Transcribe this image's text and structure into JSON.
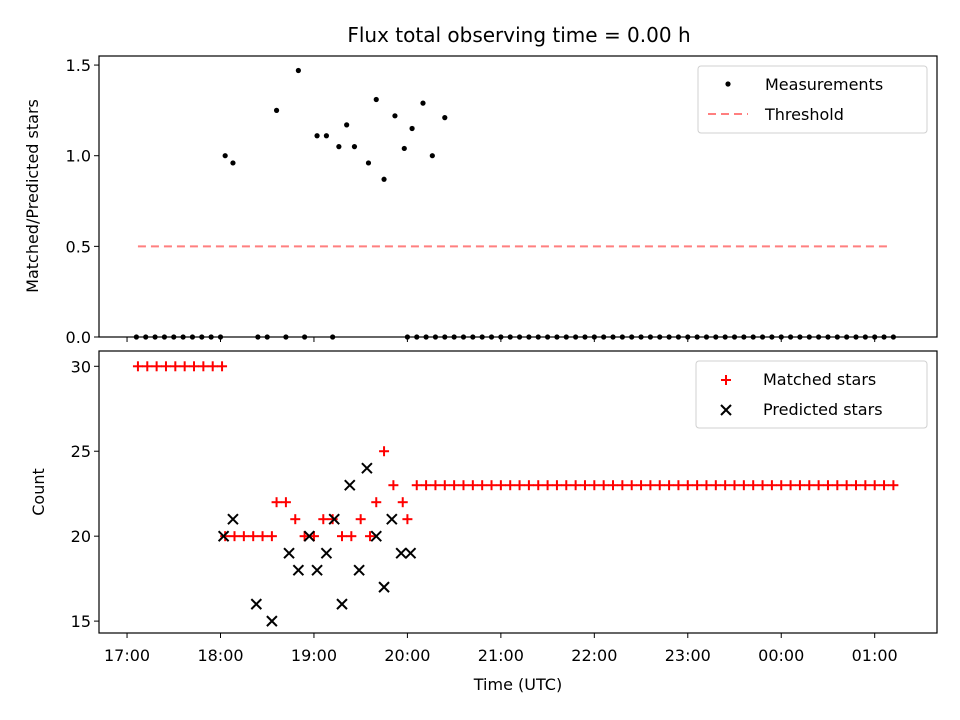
{
  "title": "Flux total observing time = 0.00 h",
  "colors": {
    "measurement": "#000000",
    "threshold": "#ff7f7f",
    "matched": "#ff0000",
    "predicted": "#000000"
  },
  "chart_data": [
    {
      "type": "scatter",
      "panel": "top",
      "ylabel": "Matched/Predicted stars",
      "ylim": [
        0,
        1.55
      ],
      "xlim": [
        "16:42",
        "01:40"
      ],
      "yticks": [
        "0.0",
        "0.5",
        "1.0",
        "1.5"
      ],
      "yticks_values": [
        0,
        0.5,
        1.0,
        1.5
      ],
      "legend": {
        "placement": "top-right",
        "entries": [
          "Measurements",
          "Threshold"
        ]
      },
      "series": [
        {
          "name": "Measurements",
          "marker": "dot",
          "x": [
            "17:06",
            "17:12",
            "17:18",
            "17:24",
            "17:30",
            "17:36",
            "17:42",
            "17:48",
            "17:54",
            "18:00",
            "18:24",
            "18:30",
            "18:42",
            "18:54",
            "19:12",
            "20:00",
            "20:06",
            "20:12",
            "20:18",
            "20:24",
            "20:30",
            "20:36",
            "20:42",
            "20:48",
            "20:54",
            "21:00",
            "21:06",
            "21:12",
            "21:18",
            "21:24",
            "21:30",
            "21:36",
            "21:42",
            "21:48",
            "21:54",
            "22:00",
            "22:06",
            "22:12",
            "22:18",
            "22:24",
            "22:30",
            "22:36",
            "22:42",
            "22:48",
            "22:54",
            "23:00",
            "23:06",
            "23:12",
            "23:18",
            "23:24",
            "23:30",
            "23:36",
            "23:42",
            "23:48",
            "23:54",
            "00:00",
            "00:06",
            "00:12",
            "00:18",
            "00:24",
            "00:30",
            "00:36",
            "00:42",
            "00:48",
            "00:54",
            "01:00",
            "01:06",
            "01:12",
            "18:03",
            "18:08",
            "18:36",
            "18:50",
            "19:02",
            "19:08",
            "19:16",
            "19:21",
            "19:26",
            "19:35",
            "19:40",
            "19:45",
            "19:52",
            "19:58",
            "20:03",
            "20:10",
            "20:16",
            "20:24"
          ],
          "y": [
            0,
            0,
            0,
            0,
            0,
            0,
            0,
            0,
            0,
            0,
            0,
            0,
            0,
            0,
            0,
            0,
            0,
            0,
            0,
            0,
            0,
            0,
            0,
            0,
            0,
            0,
            0,
            0,
            0,
            0,
            0,
            0,
            0,
            0,
            0,
            0,
            0,
            0,
            0,
            0,
            0,
            0,
            0,
            0,
            0,
            0,
            0,
            0,
            0,
            0,
            0,
            0,
            0,
            0,
            0,
            0,
            0,
            0,
            0,
            0,
            0,
            0,
            0,
            0,
            0,
            0,
            0,
            0,
            1.0,
            0.96,
            1.25,
            1.47,
            1.11,
            1.11,
            1.05,
            1.17,
            1.05,
            0.96,
            1.31,
            0.87,
            1.22,
            1.04,
            1.15,
            1.29,
            1.0,
            1.21
          ]
        },
        {
          "name": "Threshold",
          "type": "line",
          "style": "dashed",
          "x": [
            "17:07",
            "01:10"
          ],
          "y": [
            0.5,
            0.5
          ]
        }
      ]
    },
    {
      "type": "scatter",
      "panel": "bottom",
      "xlabel": "Time (UTC)",
      "ylabel": "Count",
      "ylim": [
        14.3,
        30.9
      ],
      "xlim": [
        "16:42",
        "01:40"
      ],
      "xticks": [
        "17:00",
        "18:00",
        "19:00",
        "20:00",
        "21:00",
        "22:00",
        "23:00",
        "00:00",
        "01:00"
      ],
      "yticks": [
        "15",
        "20",
        "25",
        "30"
      ],
      "yticks_values": [
        15,
        20,
        25,
        30
      ],
      "legend": {
        "placement": "top-right",
        "entries": [
          "Matched stars",
          "Predicted stars"
        ]
      },
      "series": [
        {
          "name": "Matched stars",
          "marker": "plus",
          "x": [
            "17:07",
            "17:13",
            "17:19",
            "17:25",
            "17:31",
            "17:37",
            "17:43",
            "17:49",
            "17:55",
            "18:01",
            "18:03",
            "18:09",
            "18:15",
            "18:21",
            "18:27",
            "18:33",
            "18:36",
            "18:42",
            "18:48",
            "18:54",
            "19:00",
            "19:06",
            "19:12",
            "19:18",
            "19:24",
            "19:30",
            "19:36",
            "19:40",
            "19:45",
            "19:51",
            "19:57",
            "20:00",
            "20:06",
            "20:12",
            "20:18",
            "20:24",
            "20:30",
            "20:36",
            "20:42",
            "20:48",
            "20:54",
            "21:00",
            "21:06",
            "21:12",
            "21:18",
            "21:24",
            "21:30",
            "21:36",
            "21:42",
            "21:48",
            "21:54",
            "22:00",
            "22:06",
            "22:12",
            "22:18",
            "22:24",
            "22:30",
            "22:36",
            "22:42",
            "22:48",
            "22:54",
            "23:00",
            "23:06",
            "23:12",
            "23:18",
            "23:24",
            "23:30",
            "23:36",
            "23:42",
            "23:48",
            "23:54",
            "00:00",
            "00:06",
            "00:12",
            "00:18",
            "00:24",
            "00:30",
            "00:36",
            "00:42",
            "00:48",
            "00:54",
            "01:00",
            "01:06",
            "01:12"
          ],
          "y": [
            30,
            30,
            30,
            30,
            30,
            30,
            30,
            30,
            30,
            30,
            20,
            20,
            20,
            20,
            20,
            20,
            22,
            22,
            21,
            20,
            20,
            21,
            21,
            20,
            20,
            21,
            20,
            22,
            25,
            23,
            22,
            21,
            23,
            23,
            23,
            23,
            23,
            23,
            23,
            23,
            23,
            23,
            23,
            23,
            23,
            23,
            23,
            23,
            23,
            23,
            23,
            23,
            23,
            23,
            23,
            23,
            23,
            23,
            23,
            23,
            23,
            23,
            23,
            23,
            23,
            23,
            23,
            23,
            23,
            23,
            23,
            23,
            23,
            23,
            23,
            23,
            23,
            23,
            23,
            23,
            23,
            23,
            23,
            23
          ]
        },
        {
          "name": "Predicted stars",
          "marker": "x",
          "x": [
            "18:02",
            "18:08",
            "18:23",
            "18:33",
            "18:44",
            "18:50",
            "18:57",
            "19:02",
            "19:08",
            "19:13",
            "19:18",
            "19:23",
            "19:29",
            "19:34",
            "19:40",
            "19:45",
            "19:50",
            "19:56",
            "20:02"
          ],
          "y": [
            20,
            21,
            16,
            15,
            19,
            18,
            20,
            18,
            19,
            21,
            16,
            23,
            18,
            24,
            20,
            17,
            21,
            19,
            19
          ]
        }
      ]
    }
  ]
}
